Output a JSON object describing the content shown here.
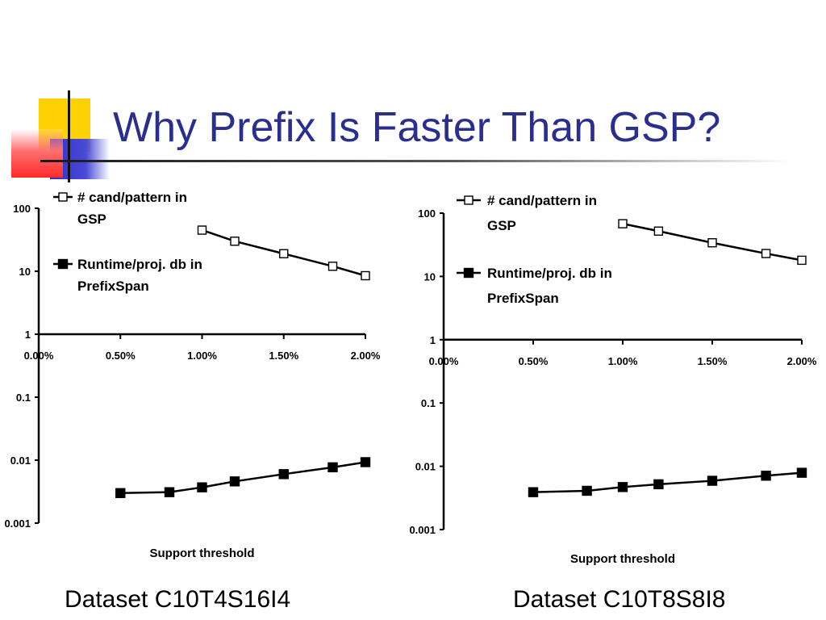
{
  "slide": {
    "title": "Why Prefix Is Faster Than GSP?",
    "colors": {
      "title": "#2a2f8f",
      "yellow": "#ffd200",
      "blue": "#3333cc",
      "red": "#ff3b3b"
    }
  },
  "chart_data": [
    {
      "type": "line",
      "caption": "Dataset C10T4S16I4",
      "xlabel": "Support threshold",
      "x_tick_labels": [
        "0.00%",
        "0.50%",
        "1.00%",
        "1.50%",
        "2.00%"
      ],
      "xlim": [
        0,
        2
      ],
      "y_scale": "log",
      "ylim": [
        0.001,
        100
      ],
      "y_tick_labels": [
        "0.001",
        "0.01",
        "0.1",
        "1",
        "10",
        "100"
      ],
      "legend_position": "top-left",
      "series": [
        {
          "name": "# cand/pattern in GSP",
          "legend_lines": [
            "# cand/pattern in",
            "GSP"
          ],
          "marker": "open-square",
          "x": [
            1.0,
            1.2,
            1.5,
            1.8,
            2.0
          ],
          "y": [
            45,
            30,
            19,
            12,
            8.5
          ]
        },
        {
          "name": "Runtime/proj. db in PrefixSpan",
          "legend_lines": [
            "Runtime/proj. db in",
            "PrefixSpan"
          ],
          "marker": "filled-square",
          "x": [
            0.5,
            0.8,
            1.0,
            1.2,
            1.5,
            1.8,
            2.0
          ],
          "y": [
            0.003,
            0.0031,
            0.0037,
            0.0046,
            0.006,
            0.0077,
            0.0093
          ]
        }
      ]
    },
    {
      "type": "line",
      "caption": "Dataset C10T8S8I8",
      "xlabel": "Support threshold",
      "x_tick_labels": [
        "0.00%",
        "0.50%",
        "1.00%",
        "1.50%",
        "2.00%"
      ],
      "xlim": [
        0,
        2
      ],
      "y_scale": "log",
      "ylim": [
        0.001,
        100
      ],
      "y_tick_labels": [
        "0.001",
        "0.01",
        "0.1",
        "1",
        "10",
        "100"
      ],
      "legend_position": "top-left",
      "series": [
        {
          "name": "# cand/pattern in GSP",
          "legend_lines": [
            "# cand/pattern in",
            "GSP"
          ],
          "marker": "open-square",
          "x": [
            1.0,
            1.2,
            1.5,
            1.8,
            2.0
          ],
          "y": [
            68,
            52,
            34,
            23,
            18
          ]
        },
        {
          "name": "Runtime/proj. db in PrefixSpan",
          "legend_lines": [
            "Runtime/proj. db in",
            "PrefixSpan"
          ],
          "marker": "filled-square",
          "x": [
            0.5,
            0.8,
            1.0,
            1.2,
            1.5,
            1.8,
            2.0
          ],
          "y": [
            0.0039,
            0.0041,
            0.0047,
            0.0052,
            0.0059,
            0.0071,
            0.0079
          ]
        }
      ]
    }
  ]
}
